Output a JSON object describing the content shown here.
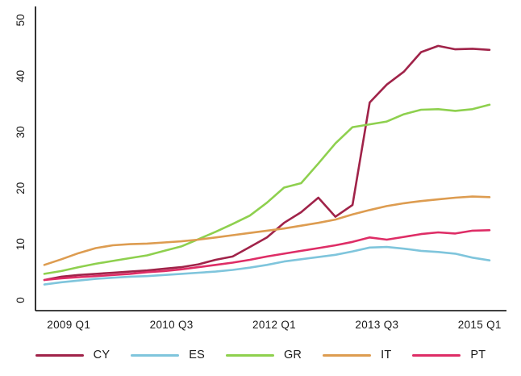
{
  "chart_data": {
    "type": "line",
    "title": "",
    "xlabel": "",
    "ylabel": "",
    "grid": false,
    "legend_position": "bottom",
    "axis_color": "#000000",
    "text_color": "#1a1a1a",
    "ylim": [
      0,
      52
    ],
    "y_ticks": [
      0,
      10,
      20,
      30,
      40,
      50
    ],
    "x_tick_labels": [
      "2009 Q1",
      "2010 Q3",
      "2012 Q1",
      "2013 Q3",
      "2015 Q1"
    ],
    "x_tick_indices": [
      1,
      7,
      13,
      19,
      25
    ],
    "x_categories": [
      "2008 Q4",
      "2009 Q1",
      "2009 Q2",
      "2009 Q3",
      "2009 Q4",
      "2010 Q1",
      "2010 Q2",
      "2010 Q3",
      "2010 Q4",
      "2011 Q1",
      "2011 Q2",
      "2011 Q3",
      "2011 Q4",
      "2012 Q1",
      "2012 Q2",
      "2012 Q3",
      "2012 Q4",
      "2013 Q1",
      "2013 Q2",
      "2013 Q3",
      "2013 Q4",
      "2014 Q1",
      "2014 Q2",
      "2014 Q3",
      "2014 Q4",
      "2015 Q1",
      "2015 Q2"
    ],
    "series": [
      {
        "name": "CY",
        "color": "#a02349",
        "values": [
          3.6,
          4.2,
          4.5,
          4.7,
          4.9,
          5.1,
          5.3,
          5.6,
          5.9,
          6.4,
          7.2,
          7.8,
          9.5,
          11.2,
          13.8,
          15.7,
          18.3,
          14.9,
          17.0,
          35.3,
          38.5,
          40.8,
          44.3,
          45.4,
          44.8,
          44.9,
          44.7
        ]
      },
      {
        "name": "ES",
        "color": "#7fc5dc",
        "values": [
          2.8,
          3.2,
          3.5,
          3.8,
          4.0,
          4.2,
          4.3,
          4.5,
          4.7,
          4.9,
          5.1,
          5.4,
          5.8,
          6.3,
          6.9,
          7.3,
          7.7,
          8.1,
          8.7,
          9.4,
          9.5,
          9.2,
          8.8,
          8.6,
          8.3,
          7.6,
          7.1
        ]
      },
      {
        "name": "GR",
        "color": "#8ed04e",
        "values": [
          4.7,
          5.2,
          5.9,
          6.5,
          7.0,
          7.5,
          8.0,
          8.8,
          9.6,
          10.9,
          12.2,
          13.6,
          15.1,
          17.4,
          20.1,
          20.9,
          24.4,
          28.0,
          30.9,
          31.4,
          31.9,
          33.2,
          34.0,
          34.1,
          33.8,
          34.1,
          34.9
        ]
      },
      {
        "name": "IT",
        "color": "#dd9c50",
        "values": [
          6.3,
          7.3,
          8.4,
          9.3,
          9.8,
          10.0,
          10.1,
          10.3,
          10.5,
          10.8,
          11.2,
          11.6,
          12.0,
          12.4,
          12.8,
          13.3,
          13.8,
          14.4,
          15.3,
          16.1,
          16.8,
          17.3,
          17.7,
          18.0,
          18.3,
          18.5,
          18.4
        ]
      },
      {
        "name": "PT",
        "color": "#de2d66",
        "values": [
          3.6,
          3.9,
          4.1,
          4.3,
          4.5,
          4.7,
          5.0,
          5.2,
          5.5,
          5.9,
          6.3,
          6.7,
          7.2,
          7.8,
          8.3,
          8.8,
          9.3,
          9.8,
          10.4,
          11.2,
          10.8,
          11.3,
          11.8,
          12.1,
          11.9,
          12.4,
          12.5
        ]
      }
    ]
  }
}
